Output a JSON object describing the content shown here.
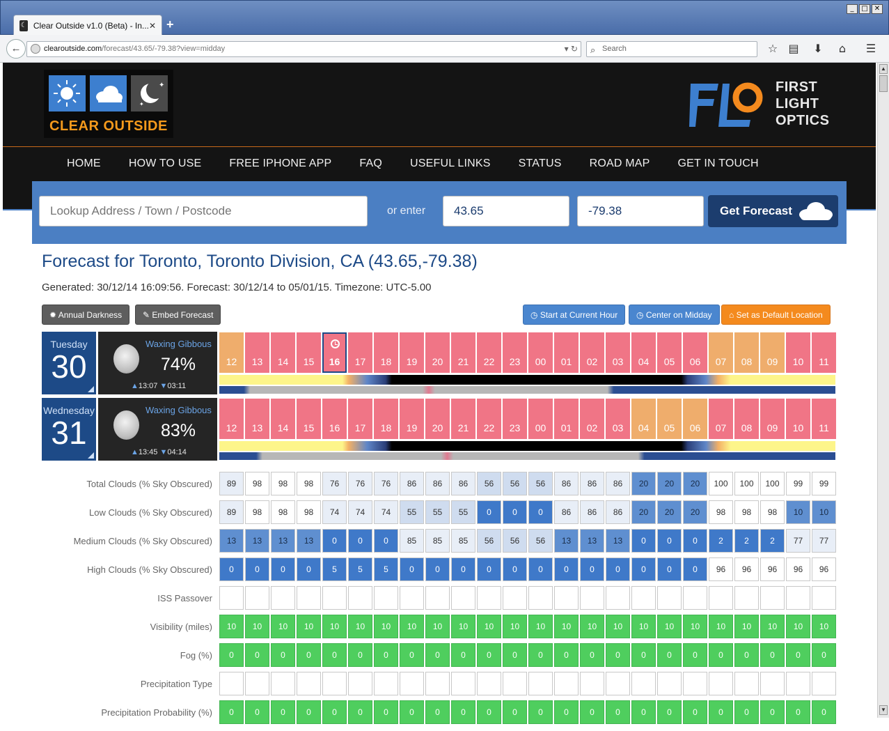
{
  "browser": {
    "tab_title": "Clear Outside v1.0 (Beta) - In...",
    "url_domain": "clearoutside.com",
    "url_path": "/forecast/43.65/-79.38?view=midday",
    "search_placeholder": "Search"
  },
  "logos": {
    "site_name": "CLEAR OUTSIDE",
    "sponsor_lines": [
      "FIRST",
      "LIGHT",
      "OPTICS"
    ]
  },
  "menu": [
    "HOME",
    "HOW TO USE",
    "FREE IPHONE APP",
    "FAQ",
    "USEFUL LINKS",
    "STATUS",
    "ROAD MAP",
    "GET IN TOUCH"
  ],
  "search": {
    "address_placeholder": "Lookup Address / Town / Postcode",
    "or_enter": "or enter",
    "latitude": "43.65",
    "longitude": "-79.38",
    "button_label": "Get Forecast"
  },
  "forecast": {
    "title": "Forecast for Toronto, Toronto Division, CA (43.65,-79.38)",
    "generated": "Generated: 30/12/14 16:09:56. Forecast: 30/12/14 to 05/01/15. Timezone: UTC-5.00"
  },
  "buttons": {
    "annual_darkness": "Annual Darkness",
    "embed_forecast": "Embed Forecast",
    "start_current_hour": "Start at Current Hour",
    "center_midday": "Center on Midday",
    "set_default": "Set as Default Location"
  },
  "hours": [
    "12",
    "13",
    "14",
    "15",
    "16",
    "17",
    "18",
    "19",
    "20",
    "21",
    "22",
    "23",
    "00",
    "01",
    "02",
    "03",
    "04",
    "05",
    "06",
    "07",
    "08",
    "09",
    "10",
    "11"
  ],
  "days": [
    {
      "day_name": "Tuesday",
      "day_num": "30",
      "moon_phase": "Waxing Gibbous",
      "moon_pct": "74%",
      "moon_rise": "13:07",
      "moon_set": "03:11",
      "current_hour_index": 4,
      "hour_ratings": [
        "ok",
        "bad",
        "bad",
        "bad",
        "bad",
        "bad",
        "bad",
        "bad",
        "bad",
        "bad",
        "bad",
        "bad",
        "bad",
        "bad",
        "bad",
        "bad",
        "bad",
        "bad",
        "bad",
        "ok",
        "ok",
        "ok",
        "bad",
        "bad"
      ]
    },
    {
      "day_name": "Wednesday",
      "day_num": "31",
      "moon_phase": "Waxing Gibbous",
      "moon_pct": "83%",
      "moon_rise": "13:45",
      "moon_set": "04:14",
      "current_hour_index": -1,
      "hour_ratings": [
        "bad",
        "bad",
        "bad",
        "bad",
        "bad",
        "bad",
        "bad",
        "bad",
        "bad",
        "bad",
        "bad",
        "bad",
        "bad",
        "bad",
        "bad",
        "bad",
        "ok",
        "ok",
        "ok",
        "bad",
        "bad",
        "bad",
        "bad",
        "bad"
      ]
    }
  ],
  "table_rows": [
    {
      "label": "Total Clouds (% Sky Obscured)",
      "kind": "cloud",
      "values": [
        "89",
        "98",
        "98",
        "98",
        "76",
        "76",
        "76",
        "86",
        "86",
        "86",
        "56",
        "56",
        "56",
        "86",
        "86",
        "86",
        "20",
        "20",
        "20",
        "100",
        "100",
        "100",
        "99",
        "99"
      ]
    },
    {
      "label": "Low Clouds (% Sky Obscured)",
      "kind": "cloud",
      "values": [
        "89",
        "98",
        "98",
        "98",
        "74",
        "74",
        "74",
        "55",
        "55",
        "55",
        "0",
        "0",
        "0",
        "86",
        "86",
        "86",
        "20",
        "20",
        "20",
        "98",
        "98",
        "98",
        "10",
        "10"
      ]
    },
    {
      "label": "Medium Clouds (% Sky Obscured)",
      "kind": "cloud",
      "values": [
        "13",
        "13",
        "13",
        "13",
        "0",
        "0",
        "0",
        "85",
        "85",
        "85",
        "56",
        "56",
        "56",
        "13",
        "13",
        "13",
        "0",
        "0",
        "0",
        "2",
        "2",
        "2",
        "77",
        "77"
      ]
    },
    {
      "label": "High Clouds (% Sky Obscured)",
      "kind": "cloud",
      "values": [
        "0",
        "0",
        "0",
        "0",
        "5",
        "5",
        "5",
        "0",
        "0",
        "0",
        "0",
        "0",
        "0",
        "0",
        "0",
        "0",
        "0",
        "0",
        "0",
        "96",
        "96",
        "96",
        "96",
        "96"
      ]
    },
    {
      "label": "ISS Passover",
      "kind": "empty",
      "values": [
        "",
        "",
        "",
        "",
        "",
        "",
        "",
        "",
        "",
        "",
        "",
        "",
        "",
        "",
        "",
        "",
        "",
        "",
        "",
        "",
        "",
        "",
        "",
        ""
      ]
    },
    {
      "label": "Visibility (miles)",
      "kind": "green",
      "values": [
        "10",
        "10",
        "10",
        "10",
        "10",
        "10",
        "10",
        "10",
        "10",
        "10",
        "10",
        "10",
        "10",
        "10",
        "10",
        "10",
        "10",
        "10",
        "10",
        "10",
        "10",
        "10",
        "10",
        "10"
      ]
    },
    {
      "label": "Fog (%)",
      "kind": "green",
      "values": [
        "0",
        "0",
        "0",
        "0",
        "0",
        "0",
        "0",
        "0",
        "0",
        "0",
        "0",
        "0",
        "0",
        "0",
        "0",
        "0",
        "0",
        "0",
        "0",
        "0",
        "0",
        "0",
        "0",
        "0"
      ]
    },
    {
      "label": "Precipitation Type",
      "kind": "empty",
      "values": [
        "",
        "",
        "",
        "",
        "",
        "",
        "",
        "",
        "",
        "",
        "",
        "",
        "",
        "",
        "",
        "",
        "",
        "",
        "",
        "",
        "",
        "",
        "",
        ""
      ]
    },
    {
      "label": "Precipitation Probability (%)",
      "kind": "green",
      "values": [
        "0",
        "0",
        "0",
        "0",
        "0",
        "0",
        "0",
        "0",
        "0",
        "0",
        "0",
        "0",
        "0",
        "0",
        "0",
        "0",
        "0",
        "0",
        "0",
        "0",
        "0",
        "0",
        "0",
        "0"
      ]
    }
  ],
  "colors": {
    "rating_bad": "#f07586",
    "rating_ok": "#efad6c",
    "brand_blue": "#1d4a87",
    "panel_blue": "#4b7fc3",
    "accent_orange": "#f48a1e"
  },
  "icons": [
    "back-arrow-icon",
    "globe-icon",
    "reload-icon",
    "search-icon",
    "star-icon",
    "reading-list-icon",
    "download-icon",
    "home-icon",
    "hamburger-menu-icon",
    "sun-icon",
    "cloud-icon",
    "moon-icon",
    "clock-icon",
    "gear-icon",
    "pin-icon",
    "home-small-icon"
  ]
}
